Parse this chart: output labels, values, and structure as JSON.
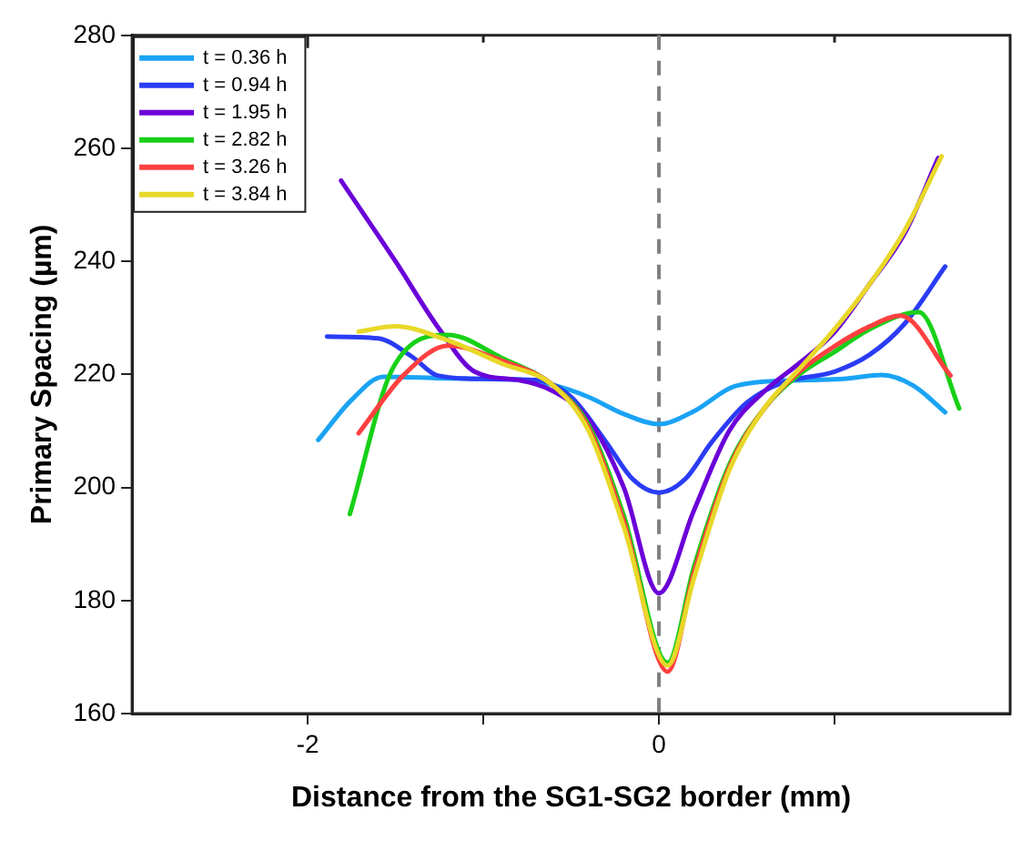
{
  "chart_data": {
    "type": "line",
    "xlabel": "Distance from the SG1-SG2 border (mm)",
    "ylabel": "Primary Spacing (µm)",
    "xlim": [
      -3,
      2
    ],
    "xticks": [
      -2,
      {
        "value": -1,
        "label": null
      },
      0,
      {
        "value": 1,
        "label": null
      }
    ],
    "ylim": [
      160,
      280
    ],
    "yticks": [
      160,
      180,
      200,
      220,
      240,
      260,
      280
    ],
    "grid": false,
    "legend": "top left",
    "marker": "none",
    "line_style": "solid",
    "ref_lines": [
      {
        "axis": "x",
        "value": 0,
        "label": null,
        "color": "#808080",
        "line_style": "dashed"
      }
    ],
    "series": [
      {
        "name": "t = 0.36 h",
        "color": "#1aa3f5",
        "x": [
          -1.94,
          -1.75,
          -1.57,
          -1.2,
          -0.8,
          -0.6,
          -0.4,
          -0.2,
          0,
          0.2,
          0.44,
          0.85,
          1.05,
          1.27,
          1.45,
          1.63
        ],
        "values": [
          208.4,
          215.5,
          219.6,
          219.3,
          219.1,
          218.1,
          216,
          213,
          211.2,
          213.5,
          218,
          219,
          219.2,
          219.9,
          218,
          213.3
        ]
      },
      {
        "name": "t = 0.94 h",
        "color": "#2a3cf5",
        "x": [
          -1.89,
          -1.6,
          -1.4,
          -1.26,
          -1,
          -0.7,
          -0.5,
          -0.3,
          -0.15,
          0,
          0.15,
          0.3,
          0.5,
          0.7,
          1.0,
          1.2,
          1.4,
          1.63
        ],
        "values": [
          226.7,
          226.4,
          223,
          219.8,
          219.2,
          219,
          216,
          208,
          201.5,
          199.1,
          201.5,
          208,
          215,
          218.5,
          220.5,
          223.5,
          229,
          239.1
        ]
      },
      {
        "name": "t = 1.95 h",
        "color": "#6a00d8",
        "x": [
          -1.81,
          -1.5,
          -1.25,
          -1.05,
          -0.8,
          -0.6,
          -0.4,
          -0.2,
          0,
          0.2,
          0.4,
          0.6,
          0.8,
          1.0,
          1.2,
          1.4,
          1.59
        ],
        "values": [
          254.3,
          240,
          228,
          220.5,
          219,
          217,
          212,
          200,
          181.3,
          196,
          210,
          217,
          222,
          227.5,
          236,
          245,
          258.3
        ]
      },
      {
        "name": "t = 2.82 h",
        "color": "#18d018",
        "x": [
          -1.76,
          -1.51,
          -1.2,
          -0.9,
          -0.6,
          -0.4,
          -0.2,
          0.05,
          0.2,
          0.4,
          0.6,
          0.8,
          1.0,
          1.2,
          1.48,
          1.71
        ],
        "values": [
          195.3,
          221.4,
          227,
          223,
          218,
          211,
          195,
          169,
          186,
          204,
          214,
          220,
          224,
          228,
          231,
          214
        ]
      },
      {
        "name": "t = 3.26 h",
        "color": "#ff4040",
        "x": [
          -1.71,
          -1.45,
          -1.2,
          -0.9,
          -0.6,
          -0.4,
          -0.2,
          0.05,
          0.2,
          0.4,
          0.6,
          0.8,
          1.0,
          1.2,
          1.375,
          1.66
        ],
        "values": [
          209.6,
          220,
          225.1,
          222.5,
          218,
          210.5,
          194,
          167.4,
          185,
          203.5,
          214,
          220.5,
          225,
          228.5,
          230.4,
          219.8
        ]
      },
      {
        "name": "t = 3.84 h",
        "color": "#e8d828",
        "x": [
          -1.71,
          -1.5,
          -1.2,
          -0.9,
          -0.6,
          -0.4,
          -0.2,
          0.05,
          0.2,
          0.4,
          0.6,
          0.8,
          1.0,
          1.2,
          1.4,
          1.61
        ],
        "values": [
          227.6,
          228.5,
          226,
          222,
          218,
          210,
          193,
          168.5,
          184,
          203,
          214,
          221,
          228,
          236,
          245.5,
          258.6
        ]
      }
    ]
  }
}
